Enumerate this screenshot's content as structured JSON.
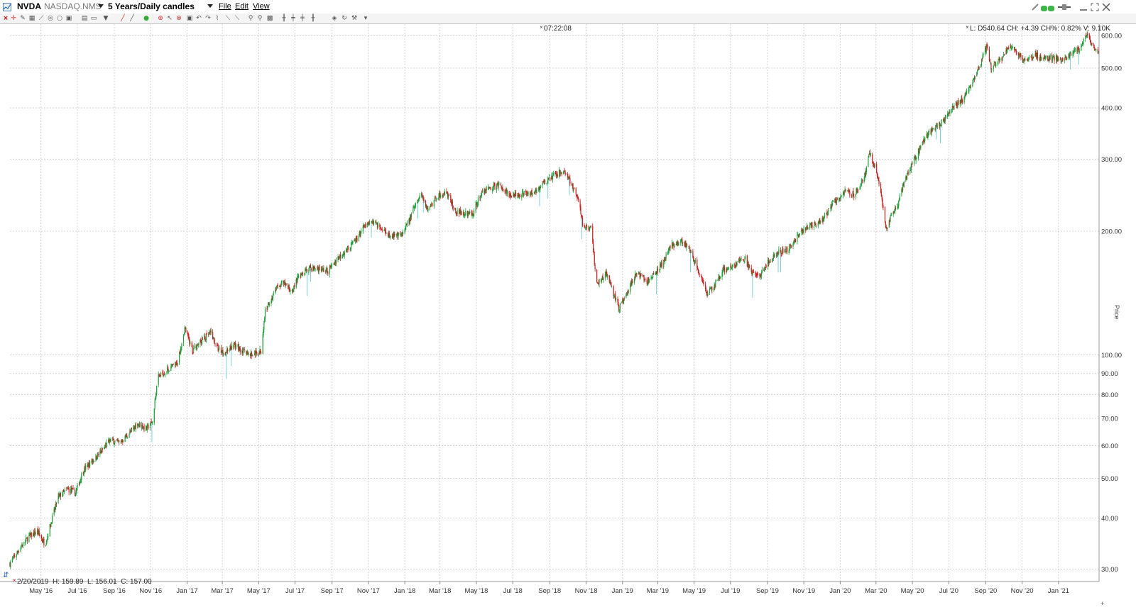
{
  "window": {
    "symbol": "NVDA",
    "exchange": "NASDAQ.NMS",
    "period": "5 Years/Daily candles",
    "menus": [
      "File",
      "Edit",
      "View"
    ]
  },
  "toolbar": {
    "icons": [
      "close-icon",
      "crosshair-icon",
      "draw-icon",
      "grid-icon",
      "line-icon",
      "record-icon",
      "link-icon",
      "layout-icon",
      "window-icon",
      "triangle-down-icon",
      "pencil-icon",
      "circle-icon",
      "target-icon",
      "cursor-icon",
      "cancel-icon",
      "cut-icon",
      "undo-icon",
      "redo-icon",
      "brush-icon",
      "measure-icon",
      "zoom-in-icon",
      "zoom-out-icon",
      "stop-icon",
      "bar-icon",
      "range-icon",
      "split-icon",
      "bar2-icon",
      "shield-icon",
      "refresh-icon",
      "wrench-icon",
      "dropdown-icon"
    ]
  },
  "chart": {
    "time_readout": "07:22:08",
    "quote_readout": "L: D540.64  CH: +4.39  CH%: 0.82%  V: 9.10K",
    "bar_info": "2/20/2019  H: 159.89  L: 156.01  C: 157.00",
    "y_axis_title": "Price",
    "colors": {
      "up": "#1f9d3a",
      "down": "#c81e1e",
      "wick_spike": "#5ac7d3",
      "grid": "#c8c8c8"
    }
  },
  "chart_data": {
    "type": "candlestick",
    "y_scale": "log",
    "ylim": [
      28,
      640
    ],
    "y_ticks": [
      30,
      40,
      50,
      60,
      70,
      80,
      90,
      100,
      200,
      300,
      400,
      500,
      600
    ],
    "y_tick_labels": [
      "30.00",
      "40.00",
      "50.00",
      "60.00",
      "70.00",
      "80.00",
      "90.00",
      "100.00",
      "200.00",
      "300.00",
      "400.00",
      "500.00",
      "600.00"
    ],
    "x_ticks": [
      "2016-05",
      "2016-07",
      "2016-09",
      "2016-11",
      "2017-01",
      "2017-03",
      "2017-05",
      "2017-07",
      "2017-09",
      "2017-11",
      "2018-01",
      "2018-03",
      "2018-05",
      "2018-07",
      "2018-09",
      "2018-11",
      "2019-01",
      "2019-03",
      "2019-05",
      "2019-07",
      "2019-09",
      "2019-11",
      "2020-01",
      "2020-03",
      "2020-05",
      "2020-07",
      "2020-09",
      "2020-11",
      "2021-01"
    ],
    "x_tick_labels": [
      "May '16",
      "Jul '16",
      "Sep '16",
      "Nov '16",
      "Jan '17",
      "Mar '17",
      "May '17",
      "Jul '17",
      "Sep '17",
      "Nov '17",
      "Jan '18",
      "Mar '18",
      "May '18",
      "Jul '18",
      "Sep '18",
      "Nov '18",
      "Jan '19",
      "Mar '19",
      "May '19",
      "Jul '19",
      "Sep '19",
      "Nov '19",
      "Jan '20",
      "Mar '20",
      "May '20",
      "Jul '20",
      "Sep '20",
      "Nov '20",
      "Jan '21"
    ],
    "x_start": "2016-03-10",
    "x_end": "2021-03-10",
    "series": [
      {
        "close_path": [
          [
            "2016-03-10",
            31
          ],
          [
            "2016-03-25",
            33.5
          ],
          [
            "2016-04-10",
            36
          ],
          [
            "2016-04-25",
            37
          ],
          [
            "2016-05-08",
            34.5
          ],
          [
            "2016-05-20",
            40
          ],
          [
            "2016-05-30",
            45
          ],
          [
            "2016-06-15",
            47
          ],
          [
            "2016-06-28",
            46
          ],
          [
            "2016-07-10",
            52
          ],
          [
            "2016-07-25",
            55
          ],
          [
            "2016-08-10",
            58
          ],
          [
            "2016-08-25",
            62
          ],
          [
            "2016-09-10",
            61
          ],
          [
            "2016-09-25",
            64
          ],
          [
            "2016-10-10",
            68
          ],
          [
            "2016-10-25",
            66
          ],
          [
            "2016-11-05",
            69
          ],
          [
            "2016-11-12",
            88
          ],
          [
            "2016-11-30",
            92
          ],
          [
            "2016-12-15",
            95
          ],
          [
            "2016-12-28",
            116
          ],
          [
            "2017-01-10",
            103
          ],
          [
            "2017-01-25",
            108
          ],
          [
            "2017-02-10",
            113
          ],
          [
            "2017-02-20",
            104
          ],
          [
            "2017-03-05",
            101
          ],
          [
            "2017-03-20",
            106
          ],
          [
            "2017-04-05",
            102
          ],
          [
            "2017-04-20",
            100
          ],
          [
            "2017-05-05",
            102
          ],
          [
            "2017-05-12",
            128
          ],
          [
            "2017-05-30",
            145
          ],
          [
            "2017-06-10",
            150
          ],
          [
            "2017-06-25",
            143
          ],
          [
            "2017-07-10",
            158
          ],
          [
            "2017-07-25",
            163
          ],
          [
            "2017-08-10",
            162
          ],
          [
            "2017-08-25",
            160
          ],
          [
            "2017-09-10",
            172
          ],
          [
            "2017-09-25",
            180
          ],
          [
            "2017-10-10",
            190
          ],
          [
            "2017-10-25",
            205
          ],
          [
            "2017-11-10",
            211
          ],
          [
            "2017-11-25",
            202
          ],
          [
            "2017-12-10",
            195
          ],
          [
            "2017-12-28",
            195
          ],
          [
            "2018-01-15",
            225
          ],
          [
            "2018-01-28",
            246
          ],
          [
            "2018-02-08",
            226
          ],
          [
            "2018-02-25",
            244
          ],
          [
            "2018-03-12",
            248
          ],
          [
            "2018-03-25",
            225
          ],
          [
            "2018-04-10",
            222
          ],
          [
            "2018-04-25",
            220
          ],
          [
            "2018-05-10",
            250
          ],
          [
            "2018-05-25",
            255
          ],
          [
            "2018-06-10",
            260
          ],
          [
            "2018-06-25",
            245
          ],
          [
            "2018-07-10",
            246
          ],
          [
            "2018-07-25",
            248
          ],
          [
            "2018-08-10",
            252
          ],
          [
            "2018-08-25",
            265
          ],
          [
            "2018-09-10",
            275
          ],
          [
            "2018-09-25",
            280
          ],
          [
            "2018-10-05",
            265
          ],
          [
            "2018-10-18",
            240
          ],
          [
            "2018-10-28",
            203
          ],
          [
            "2018-11-10",
            205
          ],
          [
            "2018-11-18",
            148
          ],
          [
            "2018-12-05",
            158
          ],
          [
            "2018-12-18",
            140
          ],
          [
            "2018-12-26",
            130
          ],
          [
            "2019-01-10",
            143
          ],
          [
            "2019-01-25",
            160
          ],
          [
            "2019-02-10",
            150
          ],
          [
            "2019-02-25",
            158
          ],
          [
            "2019-03-10",
            168
          ],
          [
            "2019-03-25",
            185
          ],
          [
            "2019-04-10",
            190
          ],
          [
            "2019-04-25",
            180
          ],
          [
            "2019-05-08",
            160
          ],
          [
            "2019-05-22",
            140
          ],
          [
            "2019-06-05",
            148
          ],
          [
            "2019-06-20",
            162
          ],
          [
            "2019-07-05",
            165
          ],
          [
            "2019-07-25",
            172
          ],
          [
            "2019-08-05",
            158
          ],
          [
            "2019-08-20",
            158
          ],
          [
            "2019-09-05",
            170
          ],
          [
            "2019-09-20",
            178
          ],
          [
            "2019-10-05",
            180
          ],
          [
            "2019-10-20",
            193
          ],
          [
            "2019-11-05",
            205
          ],
          [
            "2019-11-20",
            208
          ],
          [
            "2019-12-05",
            215
          ],
          [
            "2019-12-20",
            235
          ],
          [
            "2020-01-10",
            250
          ],
          [
            "2020-01-25",
            245
          ],
          [
            "2020-02-10",
            270
          ],
          [
            "2020-02-20",
            310
          ],
          [
            "2020-03-05",
            270
          ],
          [
            "2020-03-18",
            200
          ],
          [
            "2020-03-25",
            215
          ],
          [
            "2020-04-05",
            230
          ],
          [
            "2020-04-20",
            270
          ],
          [
            "2020-05-05",
            300
          ],
          [
            "2020-05-25",
            345
          ],
          [
            "2020-06-10",
            360
          ],
          [
            "2020-06-25",
            375
          ],
          [
            "2020-07-10",
            405
          ],
          [
            "2020-07-25",
            420
          ],
          [
            "2020-08-10",
            460
          ],
          [
            "2020-08-25",
            520
          ],
          [
            "2020-09-03",
            570
          ],
          [
            "2020-09-10",
            500
          ],
          [
            "2020-09-25",
            520
          ],
          [
            "2020-10-10",
            565
          ],
          [
            "2020-10-25",
            545
          ],
          [
            "2020-11-05",
            520
          ],
          [
            "2020-11-20",
            540
          ],
          [
            "2020-12-05",
            530
          ],
          [
            "2020-12-20",
            530
          ],
          [
            "2021-01-05",
            525
          ],
          [
            "2021-01-20",
            540
          ],
          [
            "2021-02-05",
            555
          ],
          [
            "2021-02-18",
            605
          ],
          [
            "2021-03-01",
            560
          ],
          [
            "2021-03-10",
            540
          ]
        ]
      }
    ]
  }
}
